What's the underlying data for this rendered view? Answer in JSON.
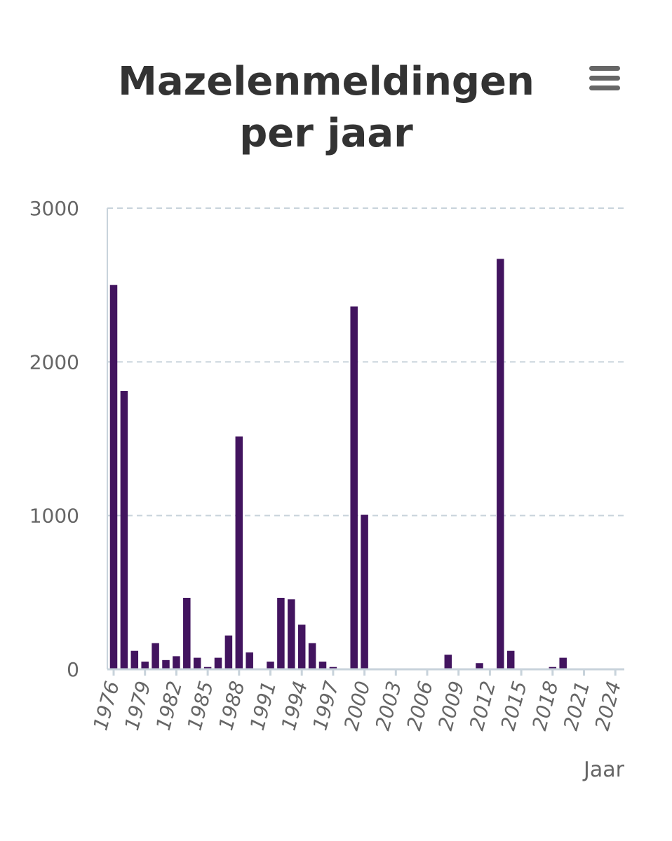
{
  "chart_data": {
    "type": "bar",
    "title": "Mazelenmeldingen per jaar",
    "xlabel": "Jaar",
    "ylabel": "",
    "ylim": [
      0,
      3000
    ],
    "yticks": [
      0,
      1000,
      2000,
      3000
    ],
    "xtick_labels": [
      "1976",
      "1979",
      "1982",
      "1985",
      "1988",
      "1991",
      "1994",
      "1997",
      "2000",
      "2003",
      "2006",
      "2009",
      "2012",
      "2015",
      "2018",
      "2021",
      "2024"
    ],
    "grid": "horizontal-dashed",
    "legend": "none",
    "bar_color": "#42145f",
    "categories": [
      "1976",
      "1977",
      "1978",
      "1979",
      "1980",
      "1981",
      "1982",
      "1983",
      "1984",
      "1985",
      "1986",
      "1987",
      "1988",
      "1989",
      "1990",
      "1991",
      "1992",
      "1993",
      "1994",
      "1995",
      "1996",
      "1997",
      "1998",
      "1999",
      "2000",
      "2001",
      "2002",
      "2003",
      "2004",
      "2005",
      "2006",
      "2007",
      "2008",
      "2009",
      "2010",
      "2011",
      "2012",
      "2013",
      "2014",
      "2015",
      "2016",
      "2017",
      "2018",
      "2019",
      "2020",
      "2021",
      "2022",
      "2023",
      "2024"
    ],
    "values": [
      2500,
      1810,
      120,
      50,
      170,
      60,
      85,
      465,
      75,
      15,
      75,
      220,
      1515,
      110,
      0,
      50,
      465,
      455,
      290,
      170,
      50,
      15,
      0,
      2360,
      1005,
      0,
      0,
      0,
      0,
      0,
      0,
      0,
      95,
      0,
      0,
      40,
      0,
      2670,
      120,
      0,
      0,
      0,
      15,
      75,
      0,
      0,
      0,
      0,
      0
    ]
  },
  "menu": {
    "icon": "hamburger-icon"
  }
}
